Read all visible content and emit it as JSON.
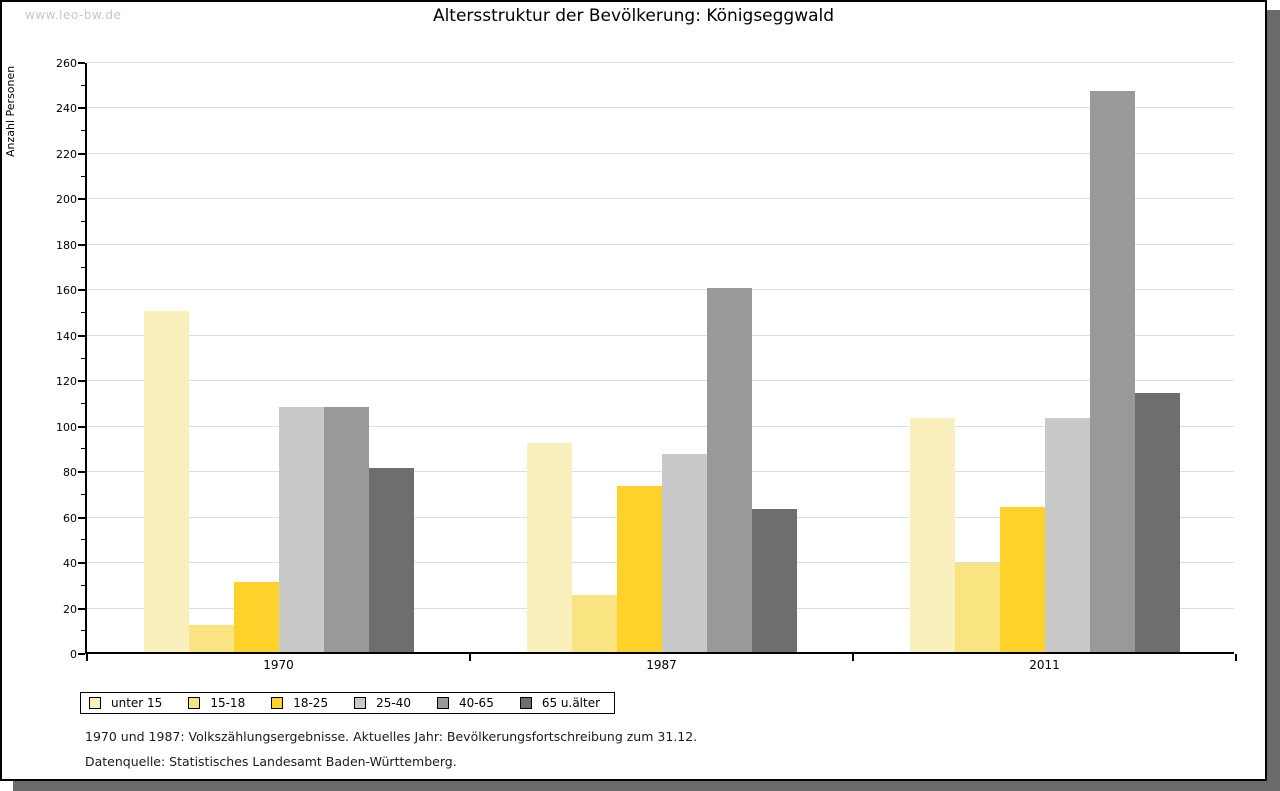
{
  "window": {
    "watermark": "www.leo-bw.de",
    "title": "Altersstruktur der Bevölkerung: Königseggwald"
  },
  "chart_data": {
    "type": "bar",
    "title": "Altersstruktur der Bevölkerung: Königseggwald",
    "xlabel": "",
    "ylabel": "Anzahl Personen",
    "ylim": [
      0,
      260
    ],
    "ytick_major_step": 20,
    "ytick_minor_step": 10,
    "grid": "horizontal major gridlines",
    "legend_position": "bottom-left boxed",
    "categories": [
      "1970",
      "1987",
      "2011"
    ],
    "series": [
      {
        "name": "unter 15",
        "color": "#faf0be",
        "values": [
          150,
          92,
          103
        ]
      },
      {
        "name": "15-18",
        "color": "#fae482",
        "values": [
          12,
          25,
          39
        ]
      },
      {
        "name": "18-25",
        "color": "#fcd22b",
        "values": [
          31,
          73,
          64
        ]
      },
      {
        "name": "25-40",
        "color": "#c9c9c9",
        "values": [
          108,
          87,
          103
        ]
      },
      {
        "name": "40-65",
        "color": "#999999",
        "values": [
          108,
          160,
          247
        ]
      },
      {
        "name": "65 u.älter",
        "color": "#6e6e6e",
        "values": [
          81,
          63,
          114
        ]
      }
    ]
  },
  "footnotes": {
    "line1": "1970 und 1987: Volkszählungsergebnisse. Aktuelles Jahr: Bevölkerungsfortschreibung zum 31.12.",
    "line2": "Datenquelle: Statistisches Landesamt Baden-Württemberg."
  }
}
